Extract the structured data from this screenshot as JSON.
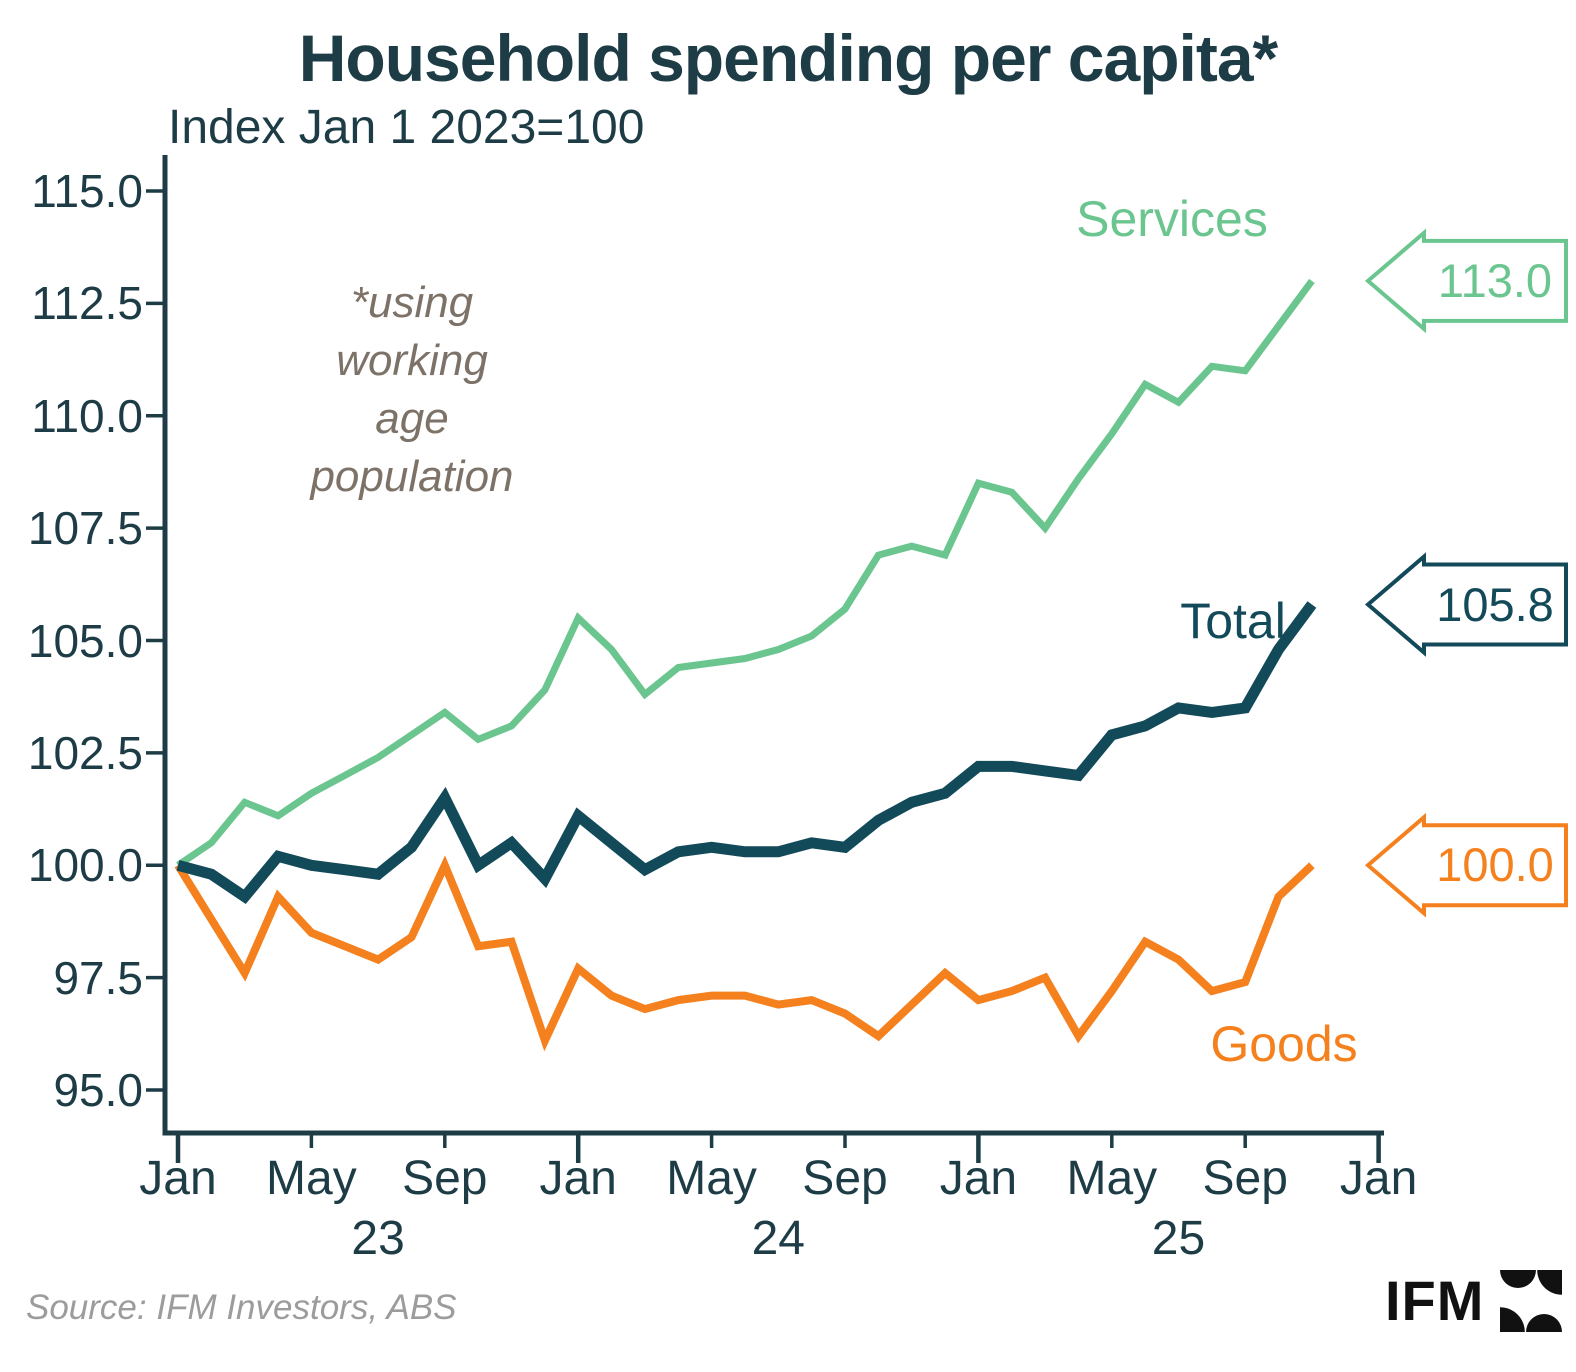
{
  "title": "Household spending per capita*",
  "subtitle": "Index Jan 1 2023=100",
  "annotation": {
    "lines": [
      "*using",
      "working",
      "age",
      "population"
    ]
  },
  "source": "Source: IFM Investors, ABS",
  "logo": {
    "text": "IFM"
  },
  "colors": {
    "title": "#1D3C46",
    "axis": "#1D3C46",
    "tick_labels": "#1D3C46",
    "services": "#6BC58F",
    "total": "#134A5A",
    "goods": "#F5801E",
    "annotation": "#7D7268",
    "source_text": "#9C9C9C",
    "logo": "#111111",
    "background": "#FFFFFF"
  },
  "chart_data": {
    "type": "line",
    "title": "Household spending per capita*",
    "subtitle": "Index Jan 1 2023=100",
    "frequency": "monthly",
    "grid": false,
    "ylim": [
      94.0,
      115.5
    ],
    "y_ticks": [
      "115.0",
      "112.5",
      "110.0",
      "107.5",
      "105.0",
      "102.5",
      "100.0",
      "97.5",
      "95.0"
    ],
    "x_tick_labels": [
      "Jan",
      "May",
      "Sep",
      "Jan",
      "May",
      "Sep",
      "Jan",
      "May",
      "Sep",
      "Jan"
    ],
    "x_year_labels": [
      "23",
      "24",
      "25"
    ],
    "x": [
      "Jan 23",
      "Feb 23",
      "Mar 23",
      "Apr 23",
      "May 23",
      "Jun 23",
      "Jul 23",
      "Aug 23",
      "Sep 23",
      "Oct 23",
      "Nov 23",
      "Dec 23",
      "Jan 24",
      "Feb 24",
      "Mar 24",
      "Apr 24",
      "May 24",
      "Jun 24",
      "Jul 24",
      "Aug 24",
      "Sep 24",
      "Oct 24",
      "Nov 24",
      "Dec 24",
      "Jan 25",
      "Feb 25",
      "Mar 25",
      "Apr 25",
      "May 25",
      "Jun 25",
      "Jul 25",
      "Aug 25",
      "Sep 25",
      "Oct 25",
      "Nov 25"
    ],
    "series": [
      {
        "name": "Services",
        "color": "#6BC58F",
        "end_label": "113.0",
        "values": [
          100.0,
          100.5,
          101.4,
          101.1,
          101.6,
          102.0,
          102.4,
          102.9,
          103.4,
          102.8,
          103.1,
          103.9,
          105.5,
          104.8,
          103.8,
          104.4,
          104.5,
          104.6,
          104.8,
          105.1,
          105.7,
          106.9,
          107.1,
          106.9,
          108.5,
          108.3,
          107.5,
          108.6,
          109.6,
          110.7,
          110.3,
          111.1,
          111.0,
          112.0,
          113.0
        ]
      },
      {
        "name": "Total",
        "color": "#134A5A",
        "end_label": "105.8",
        "values": [
          100.0,
          99.8,
          99.3,
          100.2,
          100.0,
          99.9,
          99.8,
          100.4,
          101.5,
          100.0,
          100.5,
          99.7,
          101.1,
          100.5,
          99.9,
          100.3,
          100.4,
          100.3,
          100.3,
          100.5,
          100.4,
          101.0,
          101.4,
          101.6,
          102.2,
          102.2,
          102.1,
          102.0,
          102.9,
          103.1,
          103.5,
          103.4,
          103.5,
          104.8,
          105.8
        ]
      },
      {
        "name": "Goods",
        "color": "#F5801E",
        "end_label": "100.0",
        "values": [
          100.0,
          98.8,
          97.6,
          99.3,
          98.5,
          98.2,
          97.9,
          98.4,
          100.0,
          98.2,
          98.3,
          96.1,
          97.7,
          97.1,
          96.8,
          97.0,
          97.1,
          97.1,
          96.9,
          97.0,
          96.7,
          96.2,
          96.9,
          97.6,
          97.0,
          97.2,
          97.5,
          96.2,
          97.2,
          98.3,
          97.9,
          97.2,
          97.4,
          99.3,
          100.0
        ]
      }
    ]
  }
}
